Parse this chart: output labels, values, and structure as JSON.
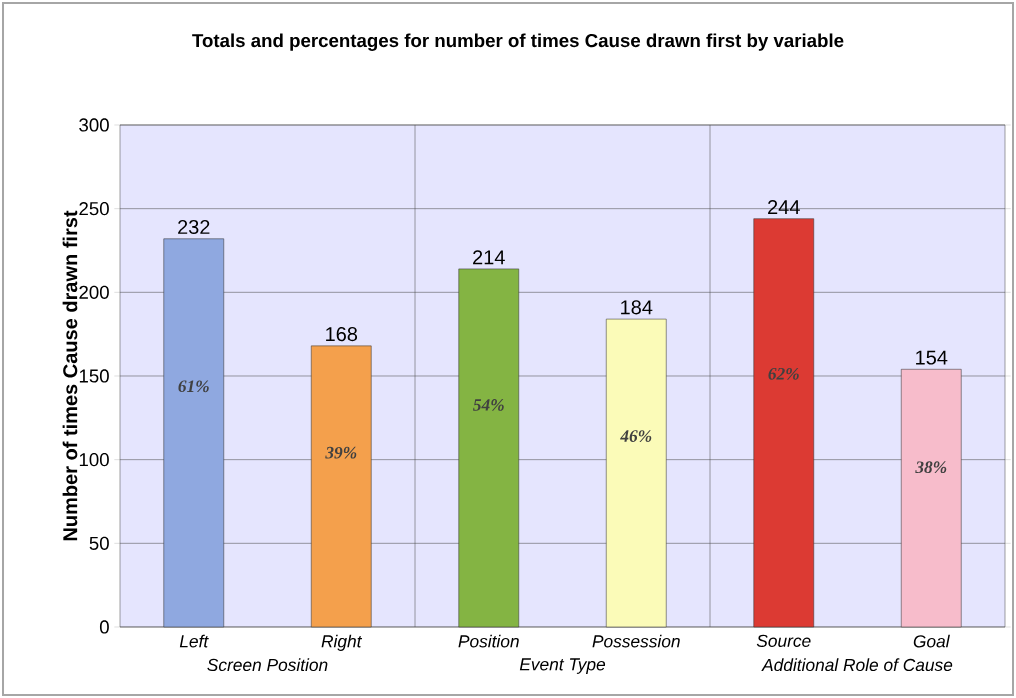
{
  "chart_data": {
    "type": "bar",
    "title": "Totals and percentages for number of times Cause drawn first by variable",
    "ylabel": "Number of times Cause drawn first",
    "categories": [
      "Left",
      "Right",
      "Position",
      "Possession",
      "Source",
      "Goal"
    ],
    "values": [
      232,
      168,
      214,
      184,
      244,
      154
    ],
    "colors": [
      "#8fa8e0",
      "#f4a04c",
      "#84b443",
      "#fbfbb8",
      "#dc3a33",
      "#f7bccb"
    ],
    "data_labels": true,
    "annotations": [
      "61%",
      "39%",
      "54%",
      "46%",
      "62%",
      "38%",
      "Screen Position",
      "Event Type",
      "Additional Role of Cause"
    ],
    "ylim": [
      0,
      300
    ],
    "yticks": [
      0,
      50,
      100,
      150,
      200,
      250,
      300
    ],
    "grid": "y"
  }
}
